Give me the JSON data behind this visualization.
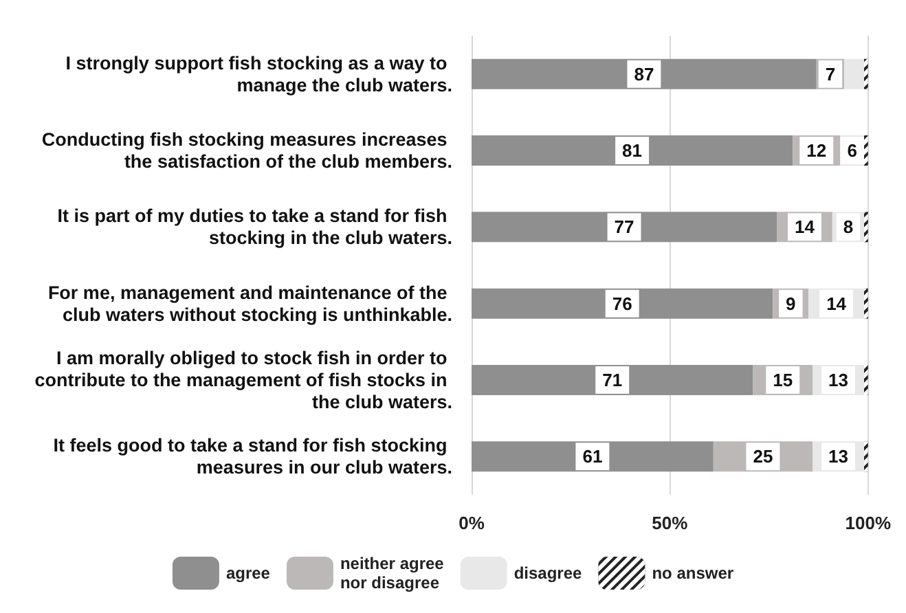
{
  "chart_data": {
    "type": "bar",
    "orientation": "horizontal",
    "stacked": true,
    "categories": [
      "I strongly support fish stocking as a way to manage the club waters.",
      "Conducting fish stocking measures increases the satisfaction of the club members.",
      "It is part of my duties to take a stand for fish stocking in the club waters.",
      "For me, management and maintenance of the club waters without stocking is unthinkable.",
      "I am morally obliged to stock fish in order to contribute to the management of fish stocks in the club waters.",
      "It feels good to take a stand for fish stocking measures in our club waters."
    ],
    "series": [
      {
        "name": "agree",
        "color": "#8f8f8f",
        "values": [
          87,
          81,
          77,
          76,
          71,
          61
        ],
        "value_labels": [
          "87",
          "81",
          "77",
          "76",
          "71",
          "61"
        ]
      },
      {
        "name": "neither agree nor disagree",
        "color": "#bdb8b8",
        "values": [
          7,
          12,
          14,
          9,
          15,
          25
        ],
        "value_labels": [
          "7",
          "12",
          "14",
          "9",
          "15",
          "25"
        ]
      },
      {
        "name": "disagree",
        "color": "#e8e8e8",
        "values": [
          5,
          6,
          8,
          14,
          13,
          13
        ],
        "value_labels": [
          null,
          "6",
          "8",
          "14",
          "13",
          "13"
        ]
      },
      {
        "name": "no answer",
        "color": "#222222",
        "values": [
          1,
          1,
          1,
          1,
          1,
          1
        ]
      }
    ],
    "xlim": [
      0,
      100
    ],
    "xticks": [
      {
        "value": 0,
        "label": "0%"
      },
      {
        "value": 50,
        "label": "50%"
      },
      {
        "value": 100,
        "label": "100%"
      }
    ],
    "grid": "x",
    "legend": "bottom"
  }
}
